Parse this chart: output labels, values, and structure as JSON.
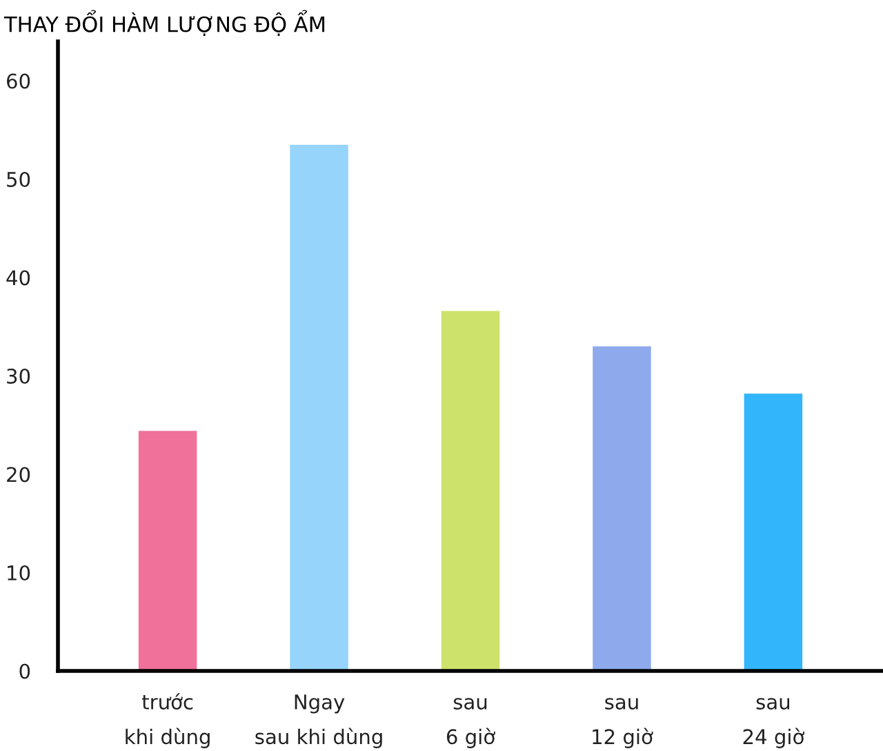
{
  "chart_data": {
    "type": "bar",
    "title": "THAY ĐỔI HÀM LƯỢNG ĐỘ ẨM",
    "categories": [
      "trước\nkhi dùng",
      "Ngay\nsau khi dùng",
      "sau\n6 giờ",
      "sau\n12 giờ",
      "sau\n24 giờ"
    ],
    "values": [
      24.4,
      53.5,
      36.6,
      33.0,
      28.2
    ],
    "colors": [
      "#f0719a",
      "#96d4fb",
      "#cde26a",
      "#8eaaec",
      "#33b5fb"
    ],
    "ylim": [
      0,
      64
    ],
    "yticks": [
      0,
      10,
      20,
      30,
      40,
      50,
      60
    ],
    "grid": false
  }
}
